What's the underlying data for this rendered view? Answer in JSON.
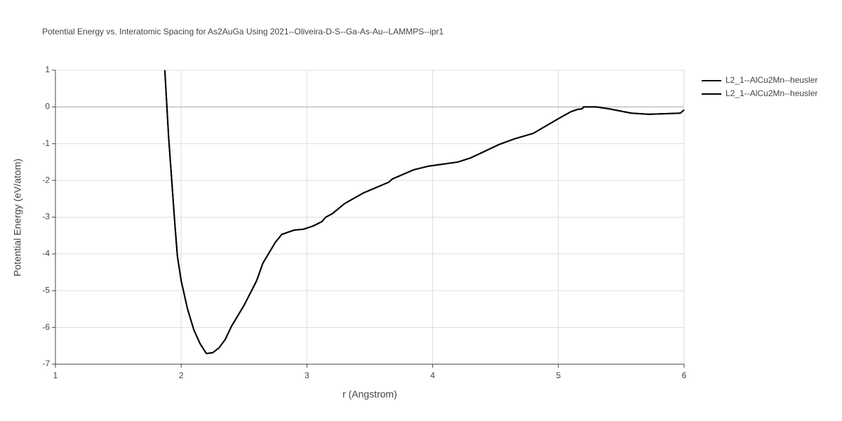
{
  "chart_data": {
    "type": "line",
    "title": "Potential Energy vs. Interatomic Spacing for As2AuGa Using 2021--Oliveira-D-S--Ga-As-Au--LAMMPS--ipr1",
    "xlabel": "r (Angstrom)",
    "ylabel": "Potential Energy (eV/atom)",
    "x": [
      1.87,
      1.9,
      1.95,
      1.97,
      2.0,
      2.05,
      2.1,
      2.15,
      2.2,
      2.25,
      2.3,
      2.35,
      2.4,
      2.5,
      2.6,
      2.65,
      2.75,
      2.8,
      2.9,
      2.97,
      3.05,
      3.12,
      3.15,
      3.2,
      3.3,
      3.45,
      3.65,
      3.68,
      3.85,
      3.97,
      4.2,
      4.3,
      4.4,
      4.53,
      4.65,
      4.8,
      4.87,
      5.0,
      5.1,
      5.15,
      5.19,
      5.2,
      5.3,
      5.4,
      5.58,
      5.72,
      5.97,
      6.0
    ],
    "series": [
      {
        "name": "L2_1--AlCu2Mn--heusler",
        "color": "#000000",
        "values": [
          1.0,
          -0.81,
          -3.2,
          -4.06,
          -4.73,
          -5.49,
          -6.06,
          -6.44,
          -6.71,
          -6.69,
          -6.56,
          -6.33,
          -5.97,
          -5.4,
          -4.73,
          -4.25,
          -3.68,
          -3.47,
          -3.35,
          -3.33,
          -3.24,
          -3.12,
          -3.0,
          -2.91,
          -2.63,
          -2.34,
          -2.05,
          -1.96,
          -1.71,
          -1.61,
          -1.5,
          -1.39,
          -1.23,
          -1.02,
          -0.87,
          -0.72,
          -0.58,
          -0.32,
          -0.13,
          -0.07,
          -0.05,
          0.0,
          0.0,
          -0.05,
          -0.17,
          -0.2,
          -0.17,
          -0.08
        ]
      },
      {
        "name": "L2_1--AlCu2Mn--heusler",
        "color": "#000000",
        "values": [
          1.0,
          -0.81,
          -3.2,
          -4.06,
          -4.73,
          -5.49,
          -6.06,
          -6.44,
          -6.71,
          -6.69,
          -6.56,
          -6.33,
          -5.97,
          -5.4,
          -4.73,
          -4.25,
          -3.68,
          -3.47,
          -3.35,
          -3.33,
          -3.24,
          -3.12,
          -3.0,
          -2.91,
          -2.63,
          -2.34,
          -2.05,
          -1.96,
          -1.71,
          -1.61,
          -1.5,
          -1.39,
          -1.23,
          -1.02,
          -0.87,
          -0.72,
          -0.58,
          -0.32,
          -0.13,
          -0.07,
          -0.05,
          0.0,
          0.0,
          -0.05,
          -0.17,
          -0.2,
          -0.17,
          -0.08
        ]
      }
    ],
    "xlim": [
      1,
      6
    ],
    "xticks": [
      1,
      2,
      3,
      4,
      5,
      6
    ],
    "ylim": [
      -7,
      1
    ],
    "yticks": [
      -7,
      -6,
      -5,
      -4,
      -3,
      -2,
      -1,
      0,
      1
    ],
    "grid": true,
    "legend": "top-right"
  }
}
